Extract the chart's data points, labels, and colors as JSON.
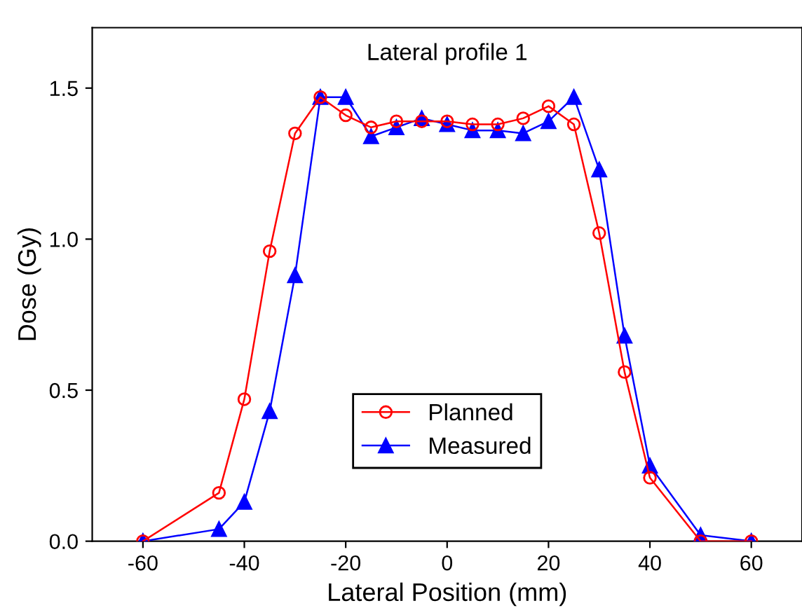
{
  "chart_data": {
    "type": "line",
    "title": "Lateral profile 1",
    "xlabel": "Lateral Position (mm)",
    "ylabel": "Dose (Gy)",
    "x": [
      -60,
      -45,
      -40,
      -35,
      -30,
      -25,
      -20,
      -15,
      -10,
      -5,
      0,
      5,
      10,
      15,
      20,
      25,
      30,
      35,
      40,
      50,
      60
    ],
    "series": [
      {
        "name": "Planned",
        "color": "#ff0000",
        "marker": "circle",
        "values": [
          0.0,
          0.16,
          0.47,
          0.96,
          1.35,
          1.47,
          1.41,
          1.37,
          1.39,
          1.39,
          1.39,
          1.38,
          1.38,
          1.4,
          1.44,
          1.38,
          1.02,
          0.56,
          0.21,
          0.0,
          0.0
        ]
      },
      {
        "name": "Measured",
        "color": "#0000ff",
        "marker": "triangle",
        "values": [
          0.0,
          0.04,
          0.13,
          0.43,
          0.88,
          1.47,
          1.47,
          1.34,
          1.37,
          1.4,
          1.38,
          1.36,
          1.36,
          1.35,
          1.39,
          1.47,
          1.23,
          0.68,
          0.25,
          0.02,
          0.0
        ]
      }
    ],
    "xlim": [
      -70,
      70
    ],
    "ylim": [
      0,
      1.7
    ],
    "xticks": [
      -60,
      -40,
      -20,
      0,
      20,
      40,
      60
    ],
    "yticks": [
      {
        "value": 0,
        "label": "0.0"
      },
      0.5,
      {
        "value": 1,
        "label": "1.0"
      },
      1.5
    ],
    "legend": "bottom",
    "grid": false
  }
}
